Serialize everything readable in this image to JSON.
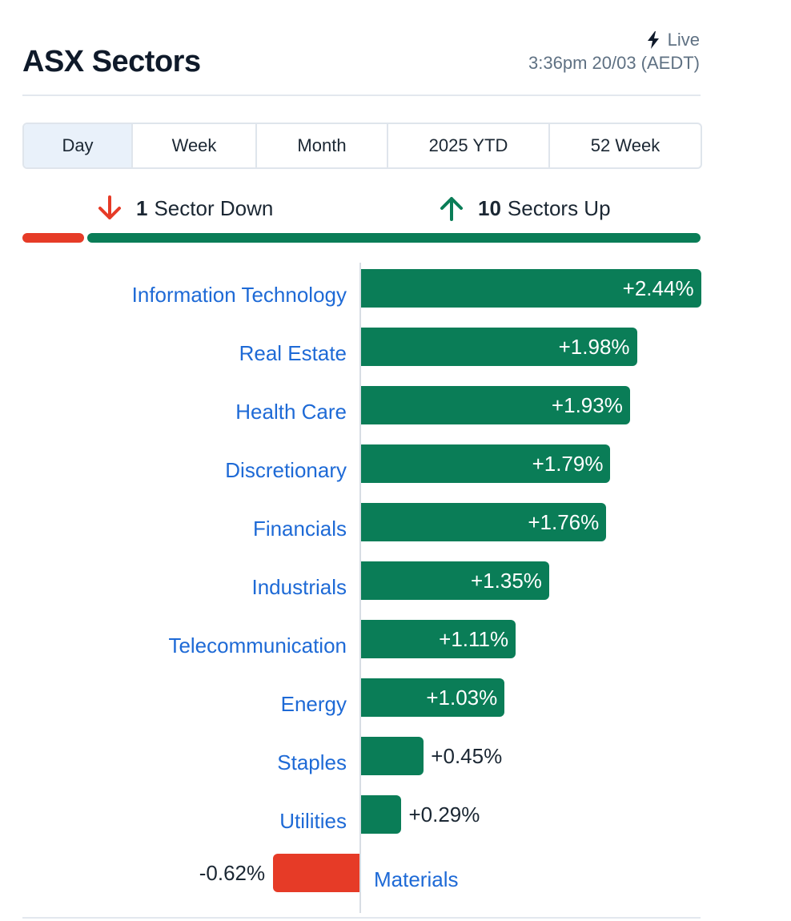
{
  "header": {
    "title": "ASX Sectors",
    "live_label": "Live",
    "timestamp": "3:36pm 20/03 (AEDT)"
  },
  "tabs": [
    "Day",
    "Week",
    "Month",
    "2025 YTD",
    "52 Week"
  ],
  "active_tab": "Day",
  "summary": {
    "down_count": "1",
    "down_label": "Sector Down",
    "up_count": "10",
    "up_label": "Sectors Up"
  },
  "colors": {
    "positive": "#0a7d57",
    "negative": "#e63b27",
    "link": "#1e6ad6",
    "muted": "#5f7183"
  },
  "chart_data": {
    "type": "bar",
    "orientation": "horizontal",
    "categories": [
      "Information Technology",
      "Real Estate",
      "Health Care",
      "Discretionary",
      "Financials",
      "Industrials",
      "Telecommunication",
      "Energy",
      "Staples",
      "Utilities",
      "Materials"
    ],
    "values": [
      2.44,
      1.98,
      1.93,
      1.79,
      1.76,
      1.35,
      1.11,
      1.03,
      0.45,
      0.29,
      -0.62
    ],
    "value_labels": [
      "+2.44%",
      "+1.98%",
      "+1.93%",
      "+1.79%",
      "+1.76%",
      "+1.35%",
      "+1.11%",
      "+1.03%",
      "+0.45%",
      "+0.29%",
      "-0.62%"
    ],
    "unit": "%",
    "breadth": {
      "down": 1,
      "up": 10
    }
  }
}
